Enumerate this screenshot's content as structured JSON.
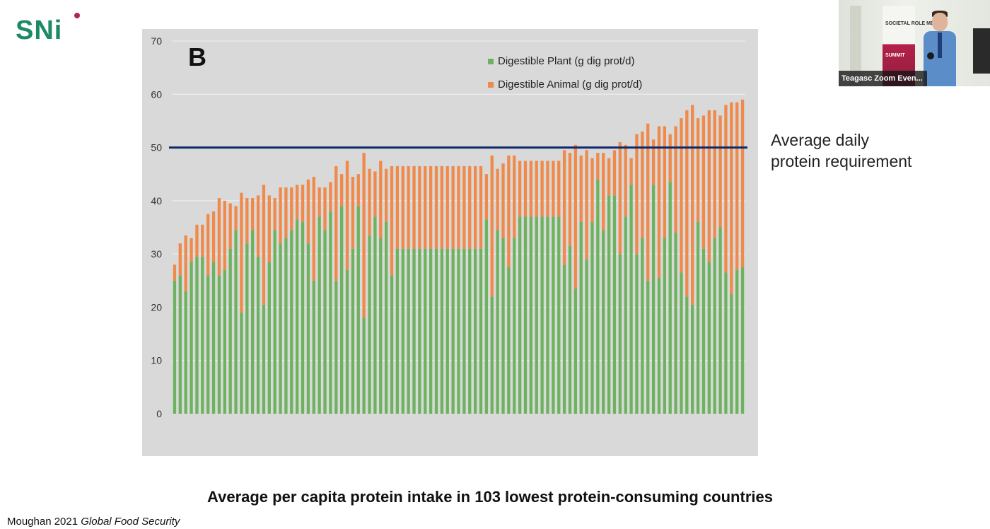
{
  "branding": {
    "logo_text": "SNi",
    "logo_icon": "sni-logo",
    "dot_color": "#b2245a",
    "text_color": "#1c8a62"
  },
  "chart_data": {
    "type": "bar",
    "stacked": true,
    "panel_label": "B",
    "n_categories": 103,
    "ylim": [
      0,
      70
    ],
    "yticks": [
      0,
      10,
      20,
      30,
      40,
      50,
      60,
      70
    ],
    "grid": true,
    "legend_position": "top-right",
    "series": [
      {
        "name": "Digestible Plant (g dig prot/d)",
        "color": "#6db35f",
        "values": [
          25.0,
          26.0,
          23.0,
          28.5,
          29.5,
          29.5,
          26.0,
          28.5,
          26.0,
          27.0,
          31.0,
          34.5,
          19.0,
          32.0,
          34.5,
          29.5,
          20.5,
          28.5,
          34.5,
          32.0,
          33.0,
          34.5,
          36.5,
          36.0,
          32.0,
          25.0,
          37.0,
          34.5,
          38.0,
          25.0,
          39.0,
          27.0,
          31.0,
          39.0,
          18.0,
          33.5,
          37.0,
          33.0,
          36.0,
          26.0,
          31.0,
          31.0,
          31.0,
          31.0,
          31.0,
          31.0,
          31.0,
          31.0,
          31.0,
          31.0,
          31.0,
          31.0,
          31.0,
          31.0,
          31.0,
          31.0,
          36.5,
          22.0,
          34.5,
          33.0,
          27.5,
          33.0,
          37.0,
          37.0,
          37.0,
          37.0,
          37.0,
          37.0,
          37.0,
          37.0,
          28.0,
          31.5,
          23.5,
          36.0,
          29.0,
          36.0,
          44.0,
          34.5,
          41.0,
          41.0,
          30.0,
          37.0,
          43.0,
          30.0,
          33.0,
          25.0,
          43.0,
          25.5,
          33.0,
          43.5,
          34.0,
          26.5,
          22.0,
          20.5,
          36.0,
          31.0,
          28.5,
          33.0,
          35.0,
          26.5,
          22.5,
          27.0,
          27.5
        ]
      },
      {
        "name": "Digestible Animal (g dig prot/d)",
        "color": "#f08a4b",
        "values": [
          3.0,
          6.0,
          10.5,
          4.5,
          6.0,
          6.0,
          11.5,
          9.5,
          14.5,
          13.0,
          8.5,
          4.5,
          22.5,
          8.5,
          6.0,
          11.5,
          22.5,
          12.5,
          6.0,
          10.5,
          9.5,
          8.0,
          6.5,
          7.0,
          12.0,
          19.5,
          5.5,
          8.0,
          5.5,
          21.5,
          6.0,
          20.5,
          13.5,
          6.0,
          31.0,
          12.5,
          8.5,
          14.5,
          10.0,
          20.5,
          15.5,
          15.5,
          15.5,
          15.5,
          15.5,
          15.5,
          15.5,
          15.5,
          15.5,
          15.5,
          15.5,
          15.5,
          15.5,
          15.5,
          15.5,
          15.5,
          8.5,
          26.5,
          11.5,
          14.0,
          21.0,
          15.5,
          10.5,
          10.5,
          10.5,
          10.5,
          10.5,
          10.5,
          10.5,
          10.5,
          21.5,
          17.5,
          27.0,
          12.5,
          20.5,
          12.0,
          5.0,
          14.5,
          7.0,
          8.5,
          21.0,
          13.5,
          5.0,
          22.5,
          20.0,
          29.5,
          8.5,
          28.5,
          21.0,
          9.0,
          20.0,
          29.0,
          35.0,
          37.5,
          19.5,
          25.0,
          28.5,
          24.0,
          21.0,
          31.5,
          36.0,
          31.5,
          31.5
        ]
      }
    ],
    "reference_line": {
      "y": 50,
      "color": "#0f2a6b"
    },
    "annotation": "Average daily protein requirement",
    "caption": "Average per capita protein intake in 103 lowest protein-consuming countries",
    "citation_author": "Moughan 2021",
    "citation_journal": "Global Food Security"
  },
  "video": {
    "label": "Teagasc Zoom Even...",
    "banner_top": "SOCIETAL ROLE MEAT",
    "banner_bottom": "SUMMIT"
  }
}
